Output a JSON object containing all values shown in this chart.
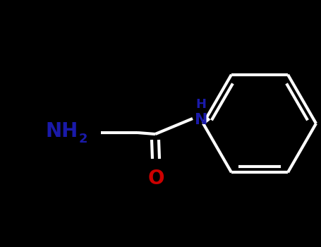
{
  "background_color": "#000000",
  "bond_color": "#1a1a2e",
  "atom_color_N": "#1a1aaa",
  "atom_color_O": "#cc0000",
  "line_width": 3.0,
  "font_size_H": 13,
  "font_size_N": 16,
  "font_size_O": 20,
  "font_size_NH2": 20,
  "font_size_sub": 13,
  "figsize": [
    4.55,
    3.5
  ],
  "dpi": 100,
  "xlim": [
    0,
    455
  ],
  "ylim": [
    0,
    350
  ]
}
